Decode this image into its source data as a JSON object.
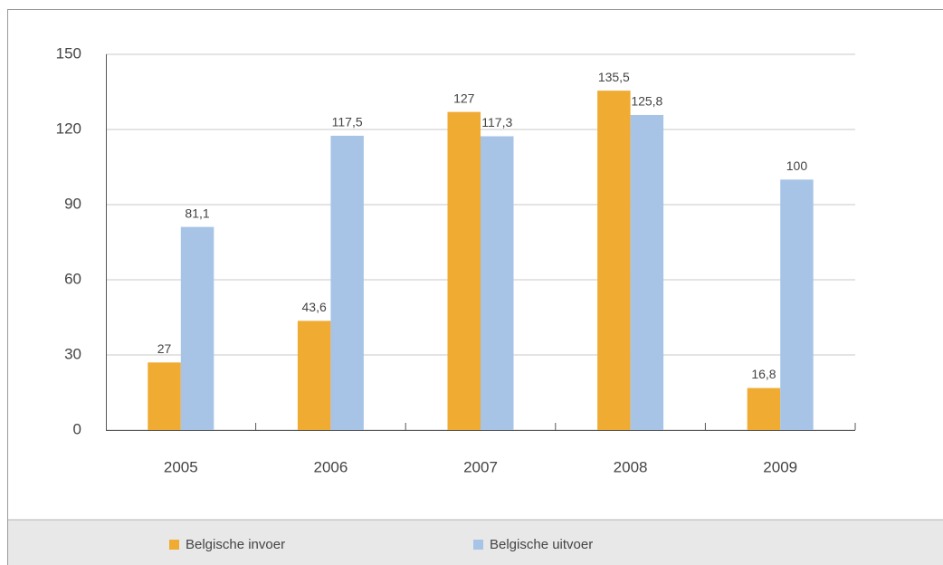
{
  "chart_data": {
    "type": "bar",
    "categories": [
      "2005",
      "2006",
      "2007",
      "2008",
      "2009"
    ],
    "series": [
      {
        "name": "Belgische invoer",
        "color": "#f0ab33",
        "values": [
          27,
          43.6,
          127,
          135.5,
          16.8
        ],
        "value_labels": [
          "27",
          "43,6",
          "127",
          "135,5",
          "16,8"
        ]
      },
      {
        "name": "Belgische uitvoer",
        "color": "#a7c4e6",
        "values": [
          81.1,
          117.5,
          117.3,
          125.8,
          100
        ],
        "value_labels": [
          "81,1",
          "117,5",
          "117,3",
          "125,8",
          "100"
        ]
      }
    ],
    "ylim": [
      0,
      150
    ],
    "yticks": [
      0,
      30,
      60,
      90,
      120,
      150
    ],
    "grid": true,
    "legend": "bottom"
  }
}
